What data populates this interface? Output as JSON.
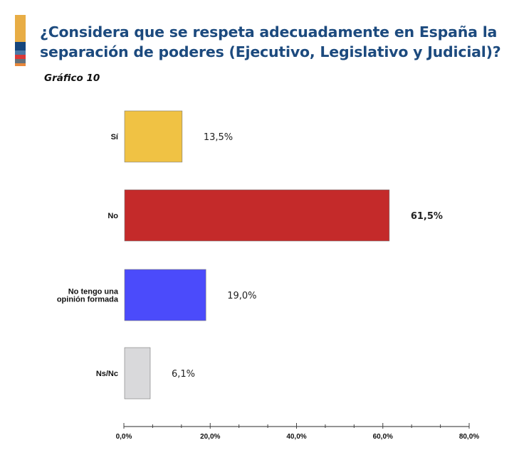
{
  "title_line1": "¿Considera que se respeta adecuadamente en España la",
  "title_line2": "separación de poderes (Ejecutivo, Legislativo y Judicial)?",
  "subtitle": "Gráfico 10",
  "logo_colors": [
    "#e8ad45",
    "#15457c",
    "#4a78a6",
    "#d93838",
    "#64707a",
    "#e8873a"
  ],
  "chart_data": {
    "type": "bar",
    "orientation": "horizontal",
    "categories": [
      [
        "Sí"
      ],
      [
        "No"
      ],
      [
        "No tengo una",
        "opinión formada"
      ],
      [
        "Ns/Nc"
      ]
    ],
    "values": [
      13.5,
      61.5,
      19.0,
      6.1
    ],
    "value_labels": [
      "13,5%",
      "61,5%",
      "19,0%",
      "6,1%"
    ],
    "bold_labels": [
      false,
      true,
      false,
      false
    ],
    "colors": [
      "#f0c244",
      "#c42a2a",
      "#4b4bfb",
      "#d9d9db"
    ],
    "xlim": [
      0,
      80
    ],
    "xticks": [
      0,
      20,
      40,
      60,
      80
    ],
    "xtick_labels": [
      "0,0%",
      "20,0%",
      "40,0%",
      "60,0%",
      "80,0%"
    ],
    "grid": false
  }
}
